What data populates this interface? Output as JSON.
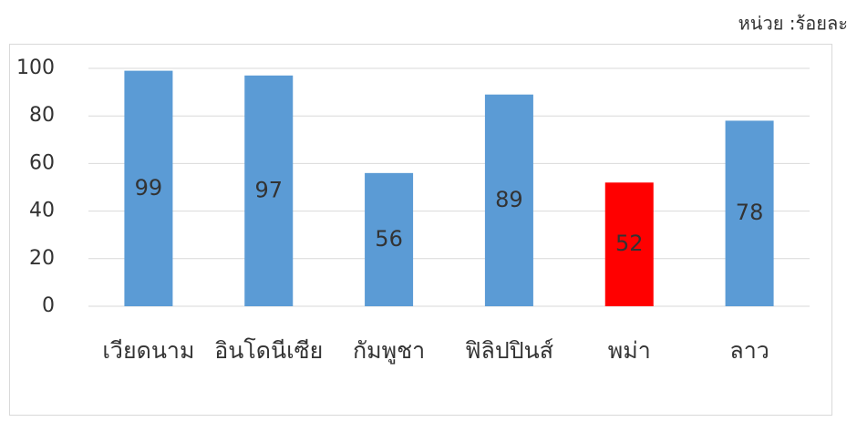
{
  "chart_data": {
    "type": "bar",
    "subtitle": "หน่วย :ร้อยละ",
    "categories": [
      "เวียดนาม",
      "อินโดนีเซีย",
      "กัมพูชา",
      "ฟิลิปปินส์",
      "พม่า",
      "ลาว"
    ],
    "values": [
      99,
      97,
      56,
      89,
      52,
      78
    ],
    "colors": [
      "#5b9bd5",
      "#5b9bd5",
      "#5b9bd5",
      "#5b9bd5",
      "#ff0000",
      "#5b9bd5"
    ],
    "ylim": [
      0,
      100
    ],
    "yticks": [
      0,
      20,
      40,
      60,
      80,
      100
    ],
    "grid": true
  }
}
